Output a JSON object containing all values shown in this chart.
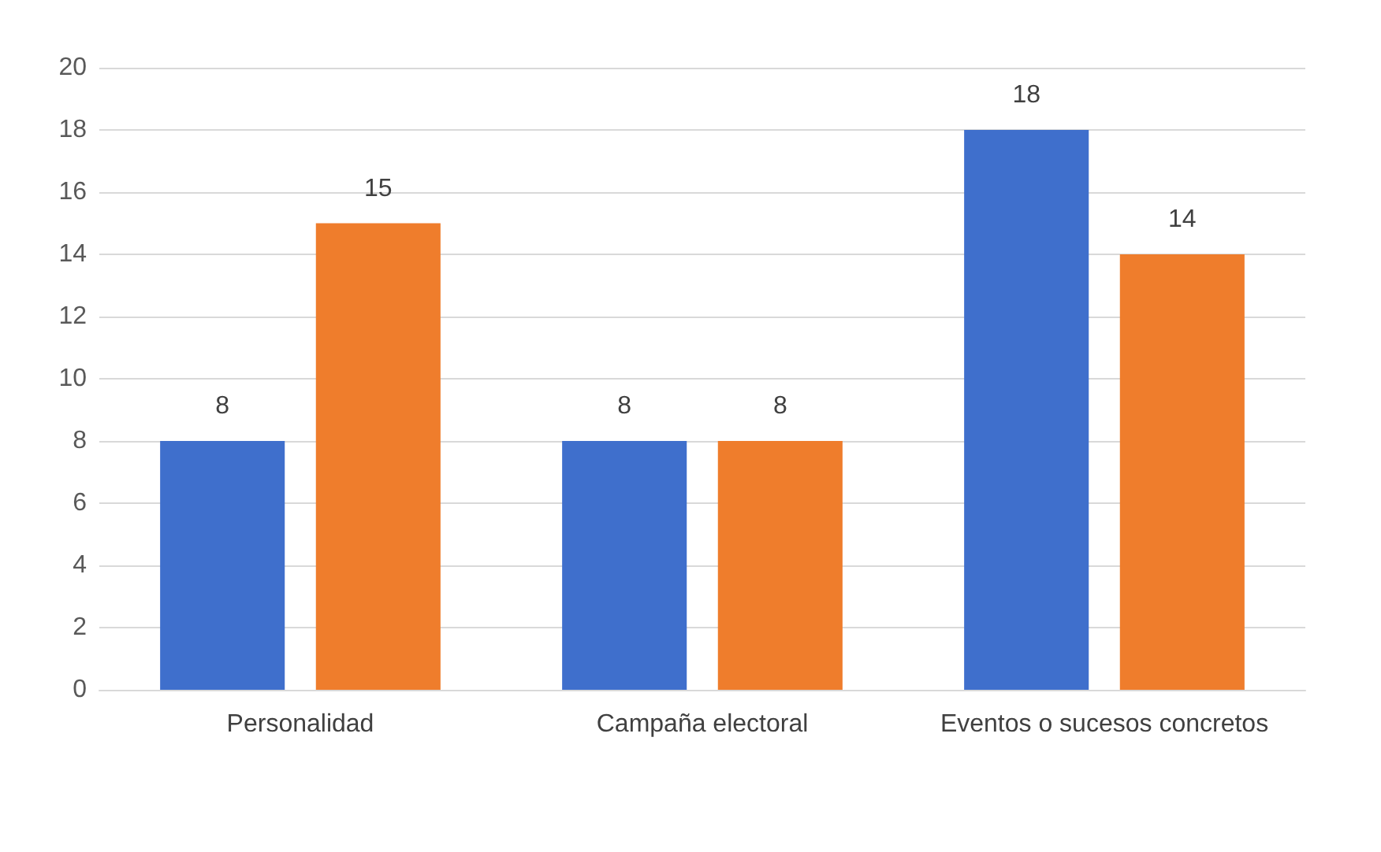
{
  "chart_data": {
    "type": "bar",
    "categories": [
      "Personalidad",
      "Campaña electoral",
      "Eventos o sucesos concretos"
    ],
    "series": [
      {
        "color": "#3f6fcc",
        "values": [
          8,
          8,
          18
        ]
      },
      {
        "color": "#ef7d2c",
        "values": [
          15,
          8,
          14
        ]
      }
    ],
    "ylim": [
      0,
      20
    ],
    "yticks": [
      0,
      2,
      4,
      6,
      8,
      10,
      12,
      14,
      16,
      18,
      20
    ],
    "grid": "y",
    "data_labels": true
  }
}
